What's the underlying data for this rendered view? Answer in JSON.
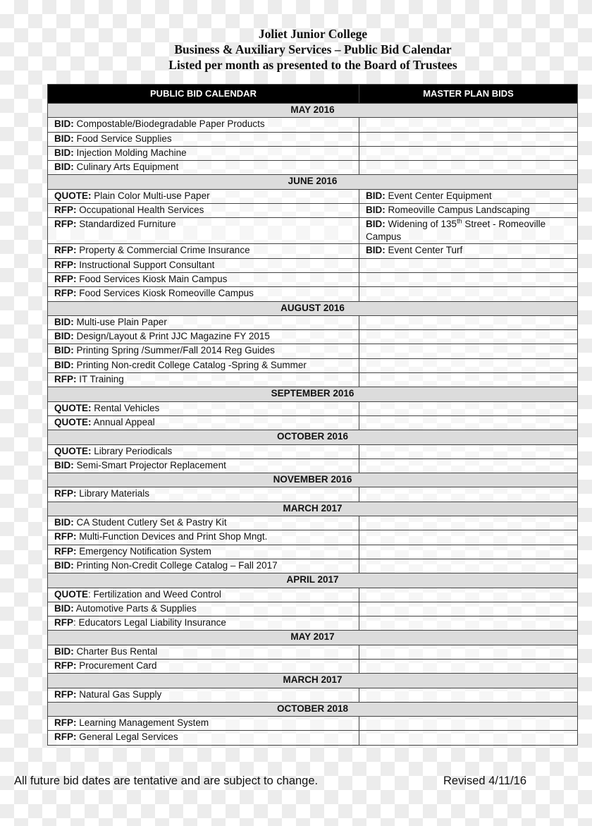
{
  "header": {
    "line1": "Joliet Junior College",
    "line2": "Business & Auxiliary Services – Public Bid Calendar",
    "line3": "Listed per month as presented to the Board of Trustees"
  },
  "columns": [
    "PUBLIC BID CALENDAR",
    "MASTER PLAN BIDS"
  ],
  "sections": [
    {
      "month": "MAY 2016",
      "rows": [
        {
          "p": "BID:",
          "t": " Compostable/Biodegradable Paper Products"
        },
        {
          "p": "BID:",
          "t": " Food Service Supplies"
        },
        {
          "p": "BID:",
          "t": " Injection Molding Machine"
        },
        {
          "p": "BID:",
          "t": " Culinary Arts Equipment"
        }
      ]
    },
    {
      "month": "JUNE 2016",
      "rows": [
        {
          "p": "QUOTE:",
          "t": " Plain Color Multi-use Paper",
          "mp": "BID:",
          "mt": " Event Center Equipment"
        },
        {
          "p": "RFP:",
          "t": " Occupational Health Services",
          "mp": "BID:",
          "mt": " Romeoville Campus Landscaping"
        },
        {
          "p": "RFP:",
          "t": " Standardized Furniture",
          "mp": "BID:",
          "mt": " Widening of 135",
          "msup": "th",
          "mt2": " Street - Romeoville Campus"
        },
        {
          "p": "RFP:",
          "t": " Property & Commercial Crime Insurance",
          "mp": "BID:",
          "mt": " Event Center Turf"
        },
        {
          "p": "RFP:",
          "t": " Instructional Support Consultant"
        },
        {
          "p": "RFP:",
          "t": " Food Services Kiosk Main Campus"
        },
        {
          "p": "RFP:",
          "t": " Food Services Kiosk Romeoville Campus"
        }
      ]
    },
    {
      "month": "AUGUST 2016",
      "rows": [
        {
          "p": "BID:",
          "t": " Multi-use Plain Paper"
        },
        {
          "p": "BID:",
          "t": " Design/Layout & Print JJC Magazine FY 2015"
        },
        {
          "p": "BID:",
          "t": "  Printing Spring /Summer/Fall 2014 Reg Guides"
        },
        {
          "p": "BID:",
          "t": " Printing Non-credit College Catalog -Spring & Summer"
        },
        {
          "p": "RFP:",
          "t": " IT Training"
        }
      ]
    },
    {
      "month": "SEPTEMBER 2016",
      "rows": [
        {
          "p": "QUOTE:",
          "t": "  Rental Vehicles"
        },
        {
          "p": "QUOTE:",
          "t": " Annual Appeal"
        }
      ]
    },
    {
      "month": "OCTOBER 2016",
      "rows": [
        {
          "p": "QUOTE:",
          "t": " Library Periodicals"
        },
        {
          "p": "BID:",
          "t": "  Semi-Smart Projector Replacement"
        }
      ]
    },
    {
      "month": "NOVEMBER 2016",
      "rows": [
        {
          "p": "RFP:",
          "t": " Library Materials"
        }
      ]
    },
    {
      "month": "MARCH 2017",
      "rows": [
        {
          "p": "BID:",
          "t": " CA Student Cutlery Set & Pastry Kit"
        },
        {
          "p": "RFP:",
          "t": " Multi-Function Devices and Print Shop Mngt."
        },
        {
          "p": "RFP:",
          "t": " Emergency Notification System"
        },
        {
          "p": "BID:",
          "t": " Printing Non-Credit College Catalog – Fall 2017"
        }
      ]
    },
    {
      "month": "APRIL 2017",
      "rows": [
        {
          "p": "QUOTE",
          "t": ":  Fertilization and Weed Control"
        },
        {
          "p": "BID:",
          "t": " Automotive Parts & Supplies"
        },
        {
          "p": "RFP",
          "t": ":  Educators Legal Liability Insurance"
        }
      ]
    },
    {
      "month": "MAY 2017",
      "rows": [
        {
          "p": "BID:",
          "t": " Charter Bus Rental"
        },
        {
          "p": "RFP:",
          "t": " Procurement Card"
        }
      ]
    },
    {
      "month": "MARCH 2017",
      "rows": [
        {
          "p": "RFP:",
          "t": " Natural Gas Supply"
        }
      ]
    },
    {
      "month": "OCTOBER 2018",
      "rows": [
        {
          "p": "RFP:",
          "t": " Learning Management System"
        },
        {
          "p": "RFP:",
          "t": " General Legal Services"
        }
      ]
    }
  ],
  "footer": {
    "note": "All future bid dates are tentative and are subject to change.",
    "revised": "Revised 4/11/16"
  }
}
